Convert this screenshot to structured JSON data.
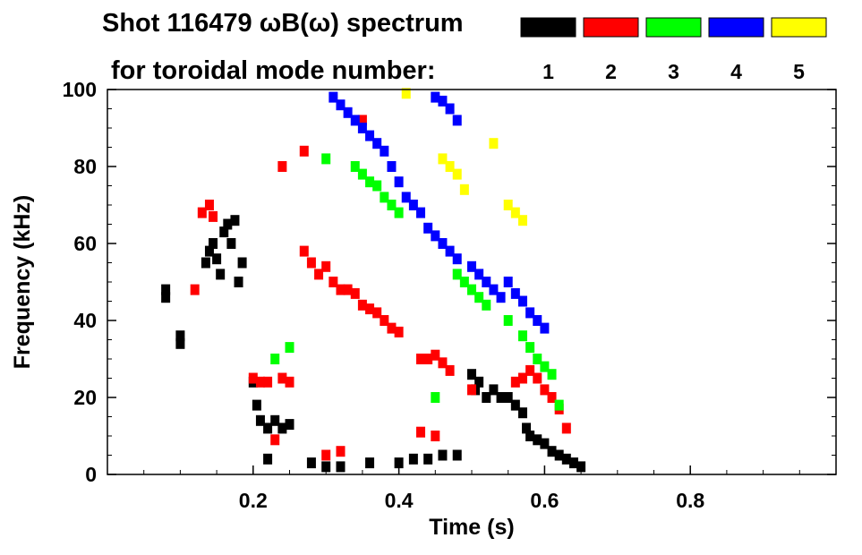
{
  "chart_data": {
    "type": "heatmap",
    "title_line1": "Shot 116479 ωB(ω) spectrum",
    "title_line2": "for toroidal mode number:",
    "xlabel": "Time (s)",
    "ylabel": "Frequency (kHz)",
    "xlim": [
      0.0,
      1.0
    ],
    "ylim": [
      0,
      100
    ],
    "x_ticks": [
      0.2,
      0.4,
      0.6,
      0.8
    ],
    "x_tick_labels": [
      "0.2",
      "0.4",
      "0.6",
      "0.8"
    ],
    "y_ticks": [
      0,
      20,
      40,
      60,
      80,
      100
    ],
    "y_tick_labels": [
      "0",
      "20",
      "40",
      "60",
      "80",
      "100"
    ],
    "x_minor_step": 0.05,
    "y_minor_step": 5,
    "legend": [
      {
        "label": "1",
        "color": "#000000"
      },
      {
        "label": "2",
        "color": "#ff0000"
      },
      {
        "label": "3",
        "color": "#00ff00"
      },
      {
        "label": "4",
        "color": "#0000ff"
      },
      {
        "label": "5",
        "color": "#ffff00"
      }
    ],
    "series": [
      {
        "mode": "1",
        "color": "#000000",
        "points": [
          [
            0.08,
            48
          ],
          [
            0.08,
            46
          ],
          [
            0.1,
            36
          ],
          [
            0.1,
            34
          ],
          [
            0.135,
            55
          ],
          [
            0.14,
            58
          ],
          [
            0.145,
            60
          ],
          [
            0.15,
            56
          ],
          [
            0.155,
            52
          ],
          [
            0.16,
            63
          ],
          [
            0.165,
            65
          ],
          [
            0.17,
            60
          ],
          [
            0.175,
            66
          ],
          [
            0.18,
            50
          ],
          [
            0.185,
            55
          ],
          [
            0.2,
            24
          ],
          [
            0.205,
            18
          ],
          [
            0.21,
            14
          ],
          [
            0.22,
            12
          ],
          [
            0.23,
            14
          ],
          [
            0.24,
            12
          ],
          [
            0.25,
            13
          ],
          [
            0.22,
            4
          ],
          [
            0.28,
            3
          ],
          [
            0.3,
            2
          ],
          [
            0.32,
            2
          ],
          [
            0.36,
            3
          ],
          [
            0.4,
            3
          ],
          [
            0.42,
            4
          ],
          [
            0.44,
            4
          ],
          [
            0.46,
            5
          ],
          [
            0.48,
            5
          ],
          [
            0.5,
            26
          ],
          [
            0.505,
            22
          ],
          [
            0.51,
            24
          ],
          [
            0.52,
            20
          ],
          [
            0.53,
            22
          ],
          [
            0.54,
            20
          ],
          [
            0.55,
            20
          ],
          [
            0.56,
            18
          ],
          [
            0.57,
            16
          ],
          [
            0.575,
            12
          ],
          [
            0.58,
            10
          ],
          [
            0.59,
            9
          ],
          [
            0.6,
            8
          ],
          [
            0.61,
            6
          ],
          [
            0.62,
            5
          ],
          [
            0.63,
            4
          ],
          [
            0.64,
            3
          ],
          [
            0.65,
            2
          ]
        ]
      },
      {
        "mode": "2",
        "color": "#ff0000",
        "points": [
          [
            0.13,
            68
          ],
          [
            0.14,
            70
          ],
          [
            0.145,
            67
          ],
          [
            0.12,
            48
          ],
          [
            0.2,
            25
          ],
          [
            0.21,
            24
          ],
          [
            0.22,
            24
          ],
          [
            0.24,
            25
          ],
          [
            0.25,
            24
          ],
          [
            0.23,
            9
          ],
          [
            0.27,
            58
          ],
          [
            0.28,
            55
          ],
          [
            0.29,
            52
          ],
          [
            0.3,
            54
          ],
          [
            0.31,
            50
          ],
          [
            0.32,
            48
          ],
          [
            0.33,
            48
          ],
          [
            0.34,
            47
          ],
          [
            0.35,
            44
          ],
          [
            0.36,
            43
          ],
          [
            0.37,
            42
          ],
          [
            0.38,
            40
          ],
          [
            0.39,
            38
          ],
          [
            0.4,
            37
          ],
          [
            0.3,
            5
          ],
          [
            0.32,
            6
          ],
          [
            0.43,
            30
          ],
          [
            0.44,
            30
          ],
          [
            0.45,
            31
          ],
          [
            0.46,
            29
          ],
          [
            0.47,
            27
          ],
          [
            0.43,
            11
          ],
          [
            0.45,
            10
          ],
          [
            0.5,
            22
          ],
          [
            0.56,
            24
          ],
          [
            0.57,
            25
          ],
          [
            0.58,
            27
          ],
          [
            0.59,
            25
          ],
          [
            0.6,
            22
          ],
          [
            0.61,
            20
          ],
          [
            0.62,
            17
          ],
          [
            0.63,
            12
          ],
          [
            0.24,
            80
          ],
          [
            0.27,
            84
          ],
          [
            0.35,
            92
          ]
        ]
      },
      {
        "mode": "3",
        "color": "#00ff00",
        "points": [
          [
            0.23,
            30
          ],
          [
            0.25,
            33
          ],
          [
            0.3,
            82
          ],
          [
            0.34,
            80
          ],
          [
            0.35,
            78
          ],
          [
            0.36,
            76
          ],
          [
            0.37,
            75
          ],
          [
            0.38,
            72
          ],
          [
            0.39,
            70
          ],
          [
            0.4,
            68
          ],
          [
            0.48,
            52
          ],
          [
            0.49,
            50
          ],
          [
            0.5,
            48
          ],
          [
            0.51,
            46
          ],
          [
            0.52,
            44
          ],
          [
            0.55,
            40
          ],
          [
            0.57,
            36
          ],
          [
            0.58,
            33
          ],
          [
            0.59,
            30
          ],
          [
            0.6,
            28
          ],
          [
            0.61,
            26
          ],
          [
            0.62,
            18
          ],
          [
            0.45,
            20
          ]
        ]
      },
      {
        "mode": "4",
        "color": "#0000ff",
        "points": [
          [
            0.31,
            98
          ],
          [
            0.32,
            96
          ],
          [
            0.33,
            94
          ],
          [
            0.34,
            92
          ],
          [
            0.35,
            90
          ],
          [
            0.36,
            88
          ],
          [
            0.37,
            86
          ],
          [
            0.38,
            84
          ],
          [
            0.39,
            80
          ],
          [
            0.4,
            76
          ],
          [
            0.41,
            72
          ],
          [
            0.42,
            70
          ],
          [
            0.43,
            68
          ],
          [
            0.44,
            64
          ],
          [
            0.45,
            62
          ],
          [
            0.46,
            60
          ],
          [
            0.47,
            58
          ],
          [
            0.48,
            56
          ],
          [
            0.5,
            54
          ],
          [
            0.51,
            52
          ],
          [
            0.52,
            50
          ],
          [
            0.53,
            48
          ],
          [
            0.54,
            46
          ],
          [
            0.55,
            50
          ],
          [
            0.56,
            47
          ],
          [
            0.57,
            45
          ],
          [
            0.58,
            42
          ],
          [
            0.59,
            40
          ],
          [
            0.6,
            38
          ],
          [
            0.46,
            97
          ],
          [
            0.47,
            95
          ],
          [
            0.48,
            92
          ],
          [
            0.45,
            98
          ]
        ]
      },
      {
        "mode": "5",
        "color": "#ffff00",
        "points": [
          [
            0.41,
            99
          ],
          [
            0.46,
            82
          ],
          [
            0.47,
            80
          ],
          [
            0.48,
            78
          ],
          [
            0.49,
            74
          ],
          [
            0.55,
            70
          ],
          [
            0.56,
            68
          ],
          [
            0.57,
            66
          ],
          [
            0.53,
            86
          ]
        ]
      }
    ]
  }
}
